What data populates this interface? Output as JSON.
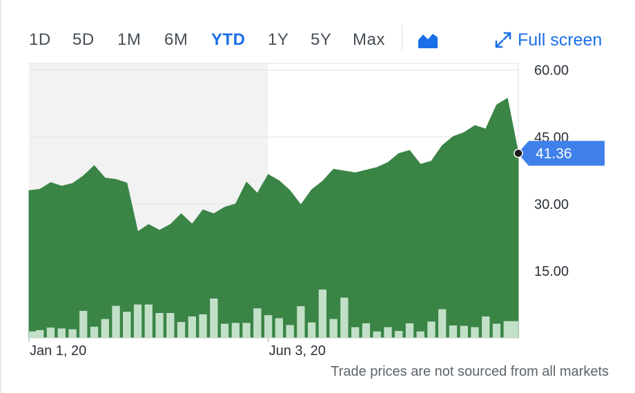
{
  "ranges": [
    {
      "label": "1D",
      "active": false
    },
    {
      "label": "5D",
      "active": false
    },
    {
      "label": "1M",
      "active": false
    },
    {
      "label": "6M",
      "active": false
    },
    {
      "label": "YTD",
      "active": true
    },
    {
      "label": "1Y",
      "active": false
    },
    {
      "label": "5Y",
      "active": false
    },
    {
      "label": "Max",
      "active": false
    }
  ],
  "chart_type_icon": "area-chart-icon",
  "fullscreen": {
    "label": "Full screen",
    "icon": "expand-arrows-icon"
  },
  "footnote": "Trade prices are not sourced from all markets",
  "colors": {
    "area": "#3a8446",
    "volume": "#c2e0c8",
    "shade": "#f2f2f2",
    "accent": "#1a6ee8",
    "price_tag": "#3f80ea"
  },
  "chart_data": {
    "type": "area",
    "title": "",
    "xlabel": "",
    "ylabel": "",
    "ylim": [
      0,
      61.5
    ],
    "yticks": [
      15,
      30,
      45,
      60
    ],
    "ytick_labels": [
      "15.00",
      "30.00",
      "45.00",
      "60.00"
    ],
    "xtick_labels": [
      {
        "index": 0,
        "label": "Jan 1, 20"
      },
      {
        "index": 22,
        "label": "Jun 3, 20"
      }
    ],
    "shaded_period": {
      "from_index": 0,
      "to_index": 22
    },
    "grid": true,
    "current_price": {
      "value": 41.36,
      "label": "41.36"
    },
    "price": [
      33.0,
      33.3,
      34.8,
      34.0,
      34.6,
      36.3,
      38.6,
      35.8,
      35.5,
      34.7,
      23.8,
      25.4,
      24.1,
      25.4,
      27.8,
      25.5,
      28.7,
      27.8,
      29.3,
      30.0,
      34.9,
      32.4,
      36.6,
      35.2,
      33.0,
      29.8,
      33.2,
      35.1,
      37.8,
      37.4,
      37.0,
      37.6,
      38.2,
      39.3,
      41.3,
      42.0,
      38.9,
      39.6,
      43.1,
      45.1,
      46.0,
      47.6,
      46.8,
      52.2,
      53.7,
      41.36
    ],
    "volume": [
      1.5,
      1.8,
      2.4,
      2.2,
      2.0,
      6.3,
      2.6,
      4.4,
      7.5,
      6.1,
      7.8,
      7.8,
      5.8,
      5.8,
      3.7,
      5.0,
      5.5,
      9.2,
      3.3,
      3.5,
      3.5,
      6.9,
      5.3,
      4.6,
      3.0,
      7.4,
      3.6,
      11.3,
      4.4,
      9.4,
      2.5,
      3.4,
      1.5,
      2.5,
      1.6,
      3.4,
      1.5,
      3.8,
      6.7,
      2.9,
      2.8,
      2.5,
      5.0,
      3.3,
      3.9,
      3.9
    ]
  }
}
